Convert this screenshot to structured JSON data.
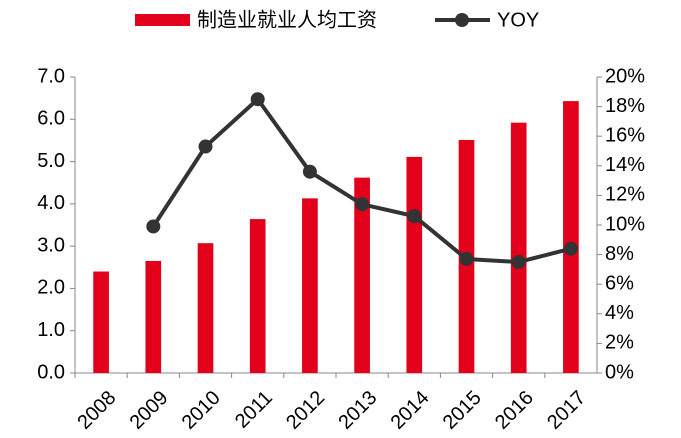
{
  "chart_data": {
    "type": "bar",
    "categories": [
      "2008",
      "2009",
      "2010",
      "2011",
      "2012",
      "2013",
      "2014",
      "2015",
      "2016",
      "2017"
    ],
    "series": [
      {
        "name": "制造业就业人均工资",
        "type": "bar",
        "color": "#e3001b",
        "values": [
          2.4,
          2.65,
          3.07,
          3.64,
          4.13,
          4.62,
          5.11,
          5.51,
          5.92,
          6.43
        ]
      },
      {
        "name": "YOY",
        "type": "line",
        "axis": "y2",
        "color": "#333333",
        "values": [
          null,
          9.9,
          15.3,
          18.5,
          13.6,
          11.4,
          10.6,
          7.7,
          7.5,
          8.4
        ]
      }
    ],
    "ylim": [
      0,
      7
    ],
    "yticks": [
      {
        "value": 0,
        "label": "0.0"
      },
      {
        "value": 1,
        "label": "1.0"
      },
      {
        "value": 2,
        "label": "2.0"
      },
      {
        "value": 3,
        "label": "3.0"
      },
      {
        "value": 4,
        "label": "4.0"
      },
      {
        "value": 5,
        "label": "5.0"
      },
      {
        "value": 6,
        "label": "6.0"
      },
      {
        "value": 7,
        "label": "7.0"
      }
    ],
    "y2lim": [
      0,
      20
    ],
    "y2ticks": [
      {
        "value": 0,
        "label": "0%"
      },
      {
        "value": 2,
        "label": "2%"
      },
      {
        "value": 4,
        "label": "4%"
      },
      {
        "value": 6,
        "label": "6%"
      },
      {
        "value": 8,
        "label": "8%"
      },
      {
        "value": 10,
        "label": "10%"
      },
      {
        "value": 12,
        "label": "12%"
      },
      {
        "value": 14,
        "label": "14%"
      },
      {
        "value": 16,
        "label": "16%"
      },
      {
        "value": 18,
        "label": "18%"
      },
      {
        "value": 20,
        "label": "20%"
      }
    ],
    "legend": "top"
  }
}
